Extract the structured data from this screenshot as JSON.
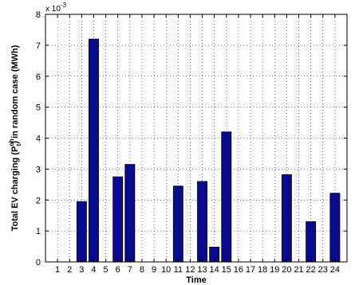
{
  "chart_data": {
    "type": "bar",
    "categories": [
      "1",
      "2",
      "3",
      "4",
      "5",
      "6",
      "7",
      "8",
      "9",
      "10",
      "11",
      "12",
      "13",
      "14",
      "15",
      "16",
      "17",
      "18",
      "19",
      "20",
      "21",
      "22",
      "23",
      "24"
    ],
    "values": [
      0,
      0,
      1.95,
      7.2,
      0,
      2.75,
      3.15,
      0,
      0,
      0,
      2.45,
      0,
      2.6,
      0.48,
      4.2,
      0,
      0,
      0,
      0,
      2.82,
      0,
      1.3,
      0,
      2.22
    ],
    "scale_label": "x 10",
    "scale_exponent": "-3",
    "xlabel": "Time",
    "ylabel_prefix": "Total EV charging (P",
    "ylabel_sup": "ch",
    "ylabel_sub": "t",
    "ylabel_suffix": ") in random case (MWh)",
    "ylim": [
      0,
      8
    ],
    "yticks": [
      0,
      1,
      2,
      3,
      4,
      5,
      6,
      7,
      8
    ],
    "xlim": [
      0,
      25
    ],
    "grid": true,
    "bar_color": "#0a0a8c"
  }
}
